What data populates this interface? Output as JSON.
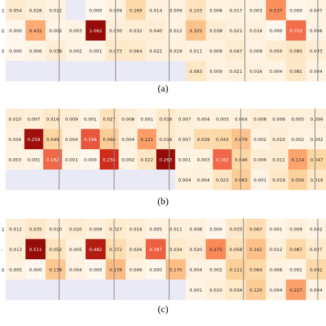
{
  "captions": [
    "(a)",
    "(b)",
    "(c)"
  ],
  "chart_data": [
    {
      "type": "heatmap",
      "title": "(a)",
      "row_labels": [
        "1",
        "0",
        "0",
        ""
      ],
      "rows": [
        [
          0.054,
          0.028,
          0.011,
          null,
          0.0,
          0.009,
          0.169,
          0.014,
          0.009,
          0.103,
          0.008,
          0.017,
          0.003,
          0.537,
          0.0,
          0.007
        ],
        [
          0.0,
          0.432,
          0.002,
          0.003,
          1.062,
          0.03,
          0.032,
          0.04,
          0.012,
          0.325,
          0.038,
          0.021,
          0.016,
          0.0,
          0.703,
          0.006
        ],
        [
          0.0,
          0.006,
          0.038,
          0.002,
          0.001,
          0.073,
          0.064,
          0.022,
          0.018,
          0.011,
          0.009,
          0.047,
          0.009,
          0.05,
          0.085,
          0.033
        ],
        [
          null,
          null,
          null,
          null,
          null,
          null,
          null,
          null,
          null,
          0.083,
          0.009,
          0.021,
          0.016,
          0.004,
          0.081,
          0.004
        ]
      ]
    },
    {
      "type": "heatmap",
      "title": "(b)",
      "row_labels": [
        "",
        "",
        "",
        ""
      ],
      "rows": [
        [
          0.01,
          0.007,
          0.016,
          0.009,
          0.001,
          0.027,
          0.008,
          0.001,
          0.016,
          0.007,
          0.004,
          0.003,
          0.004,
          0.008,
          0.006,
          0.005,
          0.006
        ],
        [
          0.004,
          0.259,
          0.049,
          0.004,
          0.198,
          0.066,
          0.004,
          0.121,
          0.016,
          0.007,
          0.039,
          0.043,
          0.079,
          0.002,
          0.01,
          0.002,
          0.002
        ],
        [
          0.003,
          0.001,
          0.182,
          0.001,
          0.0,
          0.234,
          0.002,
          0.022,
          0.263,
          0.001,
          0.003,
          0.182,
          0.046,
          0.009,
          0.011,
          0.114,
          0.047
        ],
        [
          null,
          null,
          null,
          null,
          null,
          null,
          null,
          null,
          null,
          0.004,
          0.004,
          0.023,
          0.063,
          0.001,
          0.019,
          0.056,
          0.019
        ]
      ]
    },
    {
      "type": "heatmap",
      "title": "(c)",
      "row_labels": [
        "1",
        "-",
        "0",
        ""
      ],
      "rows": [
        [
          0.012,
          0.035,
          0.01,
          0.02,
          0.009,
          0.027,
          0.016,
          0.005,
          0.011,
          0.008,
          0.0,
          0.033,
          0.067,
          0.001,
          0.009,
          0.002
        ],
        [
          0.013,
          0.511,
          0.052,
          0.005,
          0.482,
          0.072,
          0.026,
          0.367,
          0.034,
          0.02,
          0.275,
          0.058,
          0.161,
          0.012,
          0.087,
          0.027
        ],
        [
          0.005,
          0.0,
          0.138,
          0.004,
          0.0,
          0.178,
          0.006,
          0.0,
          0.17,
          0.004,
          0.002,
          0.111,
          0.084,
          0.006,
          0.001,
          0.082
        ],
        [
          null,
          null,
          null,
          null,
          null,
          null,
          null,
          null,
          null,
          0.001,
          0.01,
          0.034,
          0.12,
          0.004,
          0.227,
          0.004
        ]
      ]
    }
  ]
}
